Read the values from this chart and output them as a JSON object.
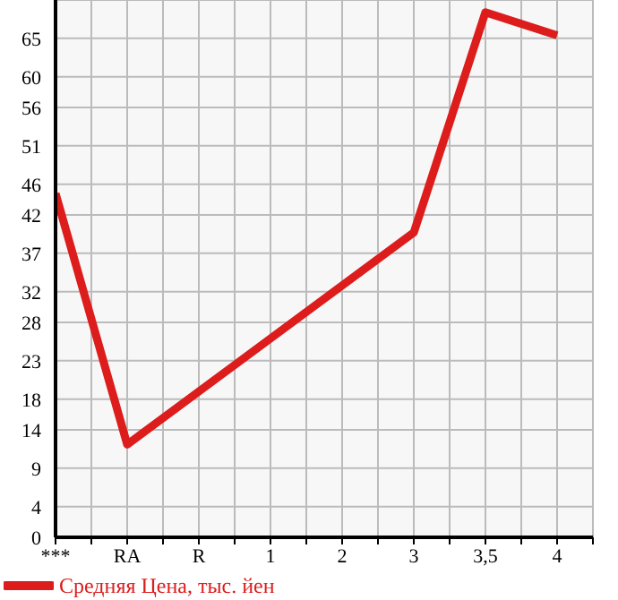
{
  "chart_data": {
    "type": "line",
    "categories": [
      "***",
      "RA",
      "R",
      "1",
      "2",
      "3",
      "3,5",
      "4"
    ],
    "series": [
      {
        "name": "Средняя Цена, тыс. йен",
        "color": "#dd1c1c",
        "values": [
          44.8,
          12.1,
          null,
          null,
          null,
          39.7,
          68.4,
          65.4
        ]
      }
    ],
    "ylim": [
      0,
      70
    ],
    "yticks": [
      0,
      4,
      9,
      14,
      18,
      23,
      28,
      32,
      37,
      42,
      46,
      51,
      56,
      60,
      65
    ],
    "grid": true,
    "legend": "bottom left",
    "marker": "none",
    "line_style": "solid"
  }
}
